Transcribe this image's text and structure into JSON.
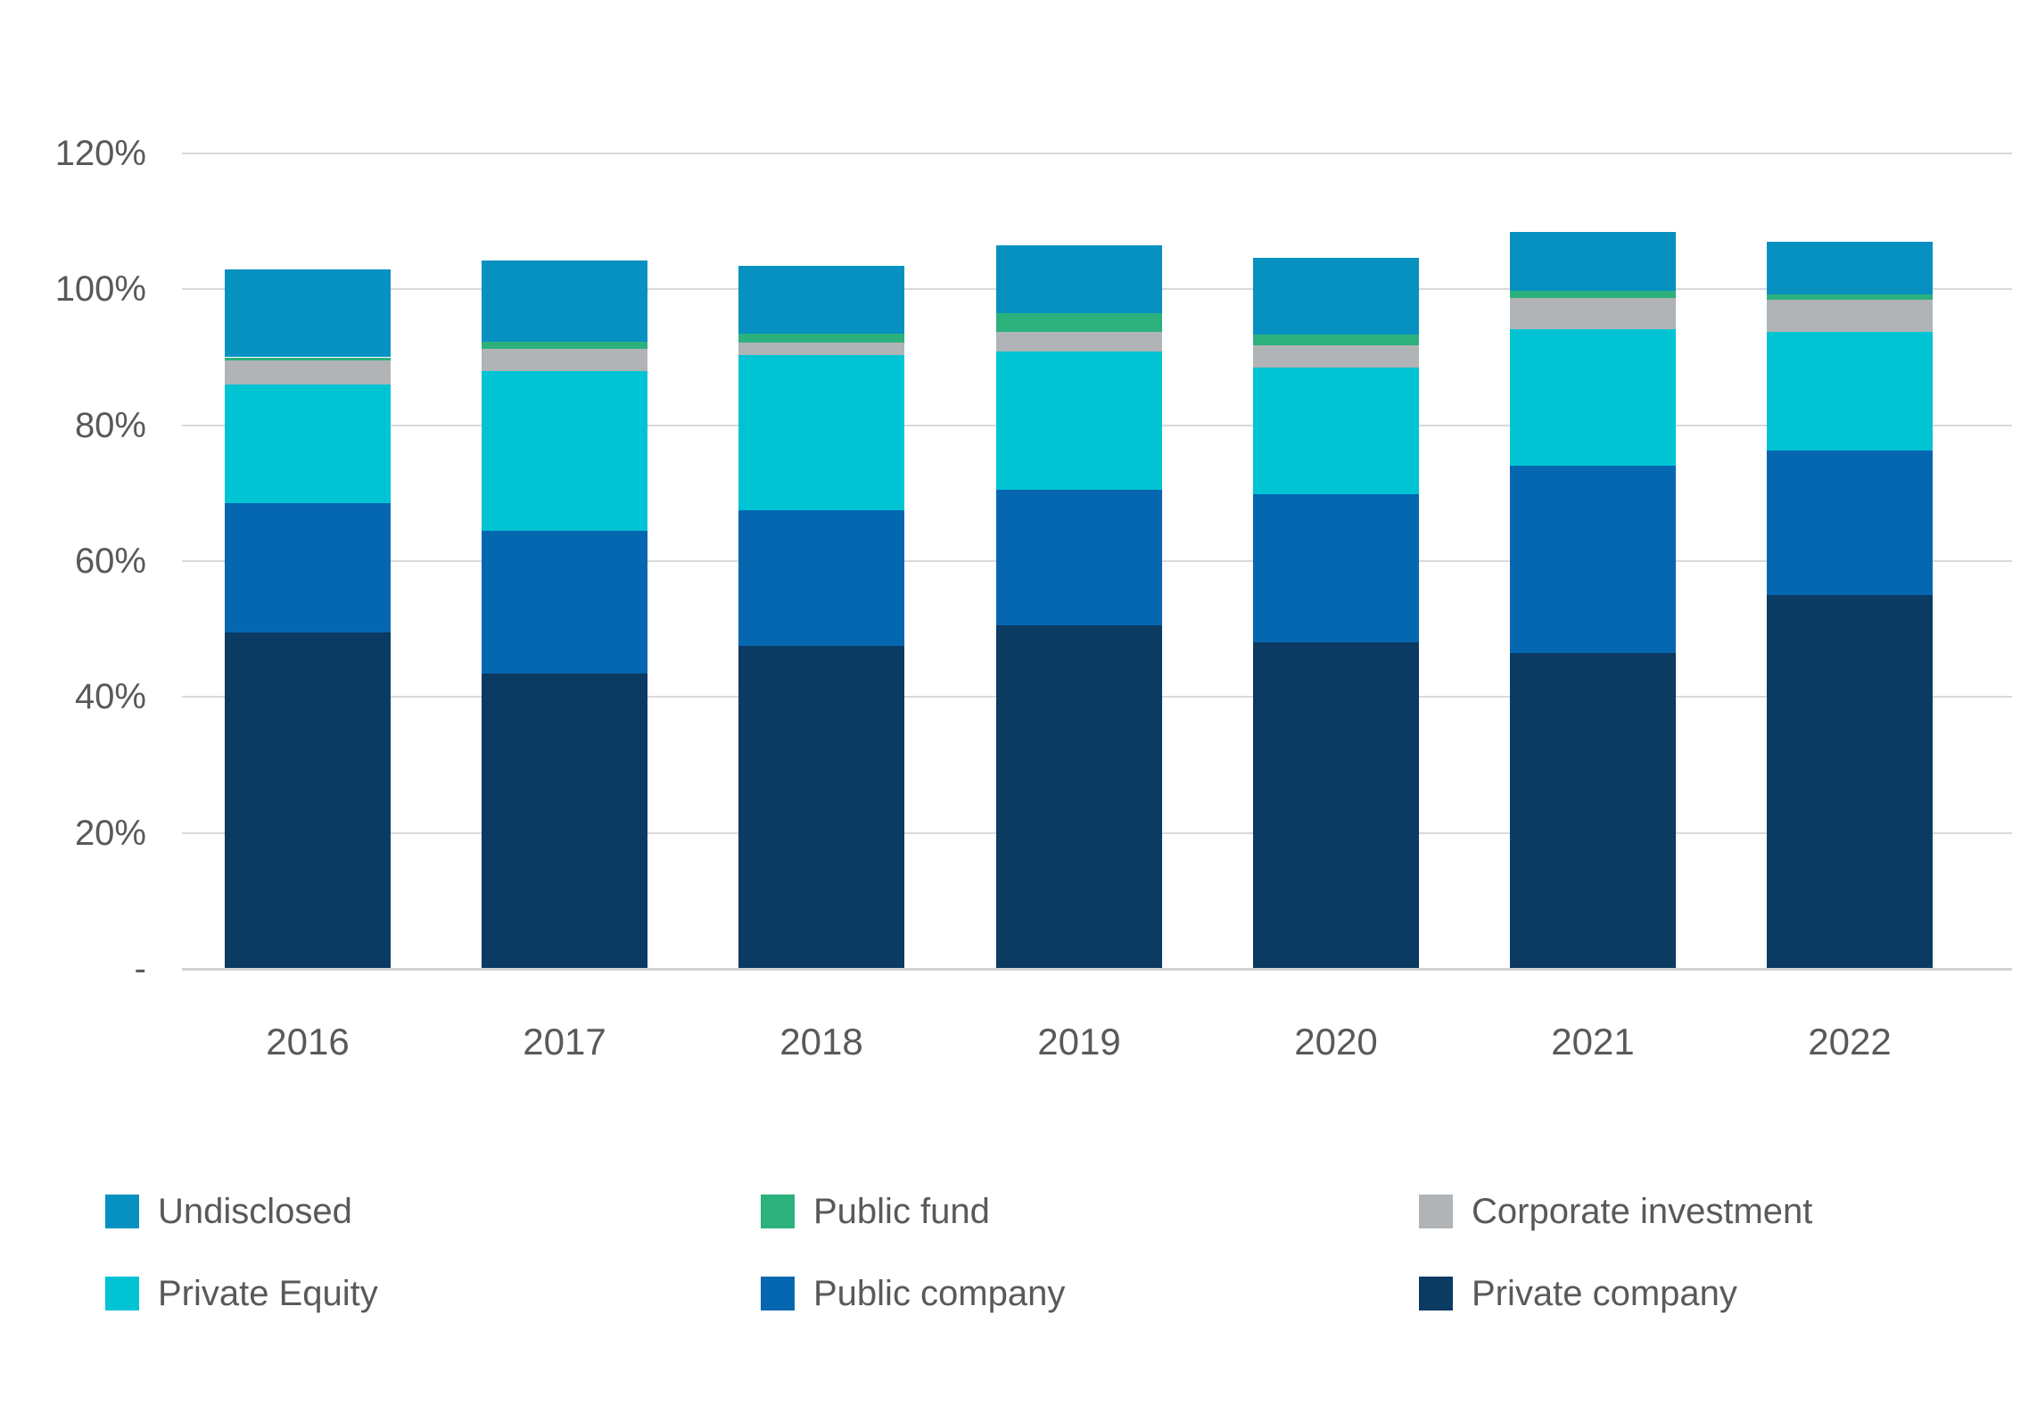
{
  "chart_data": {
    "type": "bar",
    "stacked": true,
    "title": "",
    "xlabel": "",
    "ylabel": "",
    "categories": [
      "2016",
      "2017",
      "2018",
      "2019",
      "2020",
      "2021",
      "2022"
    ],
    "series": [
      {
        "name": "Private company",
        "color": "#0B3A62",
        "values": [
          49.5,
          43.5,
          47.5,
          50.5,
          48.0,
          46.5,
          55.0
        ]
      },
      {
        "name": "Public company",
        "color": "#0667B1",
        "values": [
          19.0,
          21.0,
          20.0,
          20.0,
          21.8,
          27.5,
          21.3
        ]
      },
      {
        "name": "Private Equity",
        "color": "#00C4D4",
        "values": [
          17.5,
          23.5,
          22.8,
          20.3,
          18.7,
          20.2,
          17.5
        ]
      },
      {
        "name": "Corporate investment",
        "color": "#B1B4B6",
        "values": [
          3.5,
          3.3,
          1.9,
          2.9,
          3.3,
          4.5,
          4.7
        ]
      },
      {
        "name": "Public fund",
        "color": "#2CB17C",
        "values": [
          0.5,
          1.0,
          1.3,
          2.8,
          1.5,
          1.1,
          0.7
        ]
      },
      {
        "name": "Undisclosed",
        "color": "#0791C1",
        "values": [
          12.9,
          11.9,
          9.9,
          10.0,
          11.4,
          8.7,
          7.8
        ]
      }
    ],
    "ylim": [
      0,
      120
    ],
    "ytick_values": [
      120,
      100,
      80,
      60,
      40,
      20,
      0
    ],
    "yticks": [
      "120%",
      "100%",
      "80%",
      "60%",
      "40%",
      "20%",
      "-"
    ],
    "grid": true,
    "legend_position": "bottom"
  },
  "legend": {
    "items": [
      {
        "label": "Undisclosed",
        "color": "#0791C1"
      },
      {
        "label": "Public fund",
        "color": "#2CB17C"
      },
      {
        "label": "Corporate investment",
        "color": "#B1B4B6"
      },
      {
        "label": "Private Equity",
        "color": "#00C4D4"
      },
      {
        "label": "Public company",
        "color": "#0667B1"
      },
      {
        "label": "Private company",
        "color": "#0B3A62"
      }
    ]
  }
}
